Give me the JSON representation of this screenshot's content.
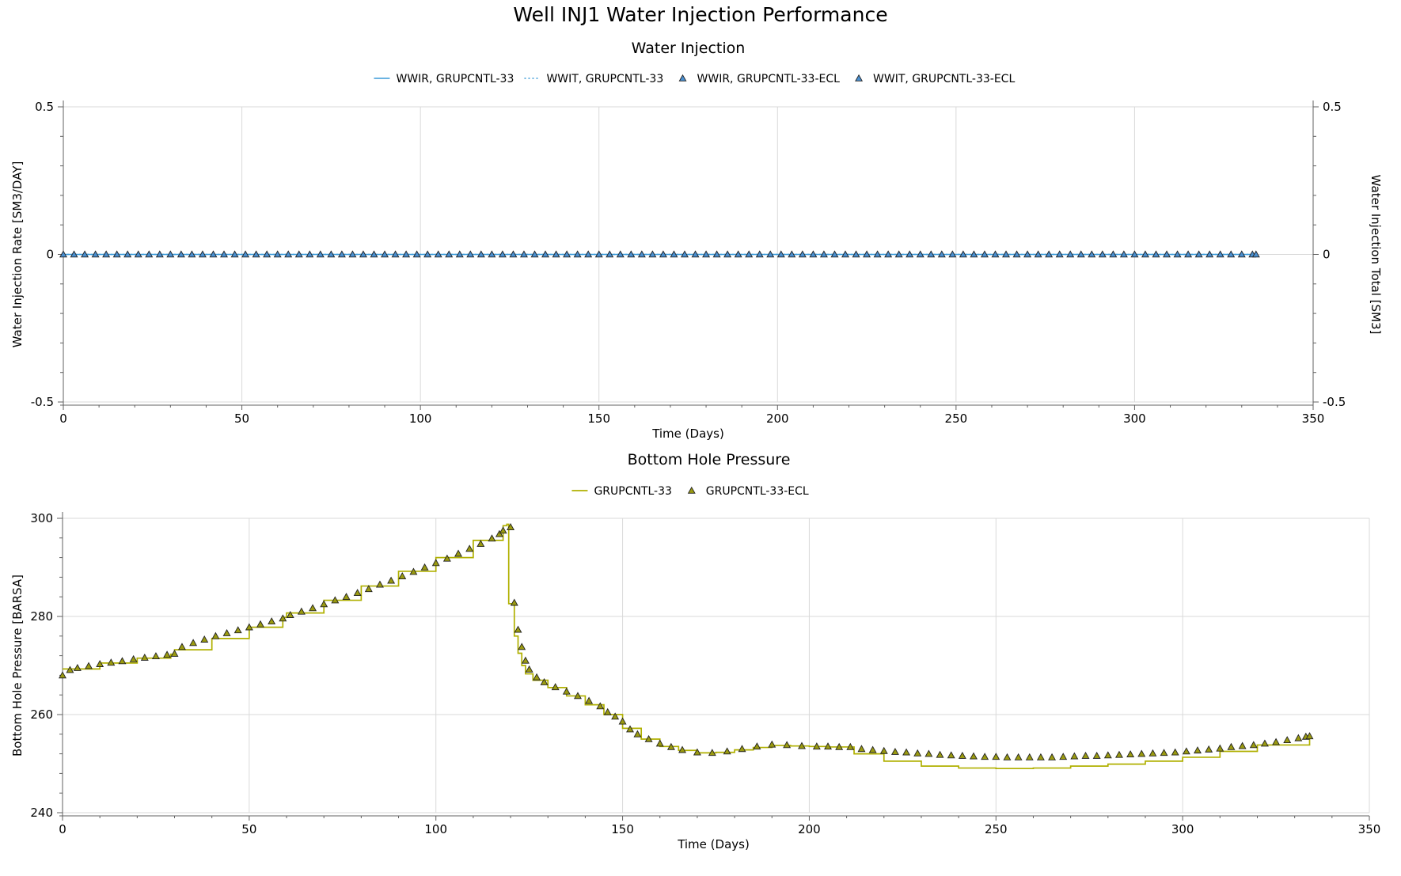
{
  "title": "Well INJ1 Water Injection Performance",
  "colors": {
    "water": "#3a9ad9",
    "water_marker": "#4a8fd0",
    "pressure": "#b0b000",
    "pressure_marker": "#9a9a10",
    "grid": "#d9d9d9",
    "axis": "#606060"
  },
  "chart_data": [
    {
      "type": "line",
      "title": "Water Injection",
      "xlabel": "Time (Days)",
      "ylabel": "Water Injection Rate [SM3/DAY]",
      "y2label": "Water Injection Total [SM3]",
      "xlim": [
        0,
        350
      ],
      "ylim": [
        -0.5,
        0.5
      ],
      "y2lim": [
        -0.5,
        0.5
      ],
      "x_ticks": [
        "0",
        "50",
        "100",
        "150",
        "200",
        "250",
        "300",
        "350"
      ],
      "y_ticks": [
        "0.5",
        "0",
        "-0.5"
      ],
      "y2_ticks": [
        "0.5",
        "0",
        "-0.5"
      ],
      "grid": true,
      "legend_position": "top-center",
      "series": [
        {
          "name": "WWIR, GRUPCNTL-33",
          "style": "solid-line",
          "axis": "left",
          "x_range": [
            0,
            334
          ],
          "value": 0
        },
        {
          "name": "WWIT, GRUPCNTL-33",
          "style": "dotted-line",
          "axis": "right",
          "x_range": [
            0,
            334
          ],
          "value": 0
        },
        {
          "name": "WWIR, GRUPCNTL-33-ECL",
          "style": "triangle-marker",
          "axis": "left",
          "x_step": 3,
          "x_range": [
            0,
            334
          ],
          "value": 0
        },
        {
          "name": "WWIT, GRUPCNTL-33-ECL",
          "style": "triangle-marker",
          "axis": "right",
          "x_step": 3,
          "x_range": [
            0,
            334
          ],
          "value": 0
        }
      ]
    },
    {
      "type": "line",
      "title": "Bottom Hole Pressure",
      "xlabel": "Time (Days)",
      "ylabel": "Bottom Hole Pressure [BARSA]",
      "xlim": [
        0,
        350
      ],
      "ylim": [
        240,
        300
      ],
      "x_ticks": [
        "0",
        "50",
        "100",
        "150",
        "200",
        "250",
        "300",
        "350"
      ],
      "y_ticks": [
        "300",
        "280",
        "260",
        "240"
      ],
      "grid": true,
      "legend_position": "top-center",
      "series": [
        {
          "name": "GRUPCNTL-33",
          "style": "step-line",
          "points": [
            [
              0,
              269.3
            ],
            [
              10,
              270.5
            ],
            [
              20,
              271.5
            ],
            [
              29,
              272.3
            ],
            [
              30,
              273.2
            ],
            [
              40,
              275.5
            ],
            [
              50,
              277.8
            ],
            [
              59,
              279.8
            ],
            [
              60,
              280.7
            ],
            [
              70,
              283.3
            ],
            [
              80,
              286.2
            ],
            [
              90,
              289.2
            ],
            [
              100,
              292.0
            ],
            [
              110,
              295.5
            ],
            [
              118,
              298.5
            ],
            [
              119,
              298.8
            ],
            [
              119.5,
              282.6
            ],
            [
              121,
              276.0
            ],
            [
              122,
              272.5
            ],
            [
              123,
              270.0
            ],
            [
              124,
              268.3
            ],
            [
              126,
              267.0
            ],
            [
              130,
              265.5
            ],
            [
              135,
              263.8
            ],
            [
              140,
              262.0
            ],
            [
              145,
              260.0
            ],
            [
              150,
              257.2
            ],
            [
              155,
              255.0
            ],
            [
              160,
              253.5
            ],
            [
              165,
              252.7
            ],
            [
              170,
              252.2
            ],
            [
              175,
              252.3
            ],
            [
              180,
              252.8
            ],
            [
              185,
              253.3
            ],
            [
              190,
              253.7
            ],
            [
              195,
              253.6
            ],
            [
              200,
              253.5
            ],
            [
              205,
              253.4
            ],
            [
              211,
              253.4
            ],
            [
              212,
              252.0
            ],
            [
              220,
              250.5
            ],
            [
              230,
              249.5
            ],
            [
              240,
              249.1
            ],
            [
              250,
              249.0
            ],
            [
              260,
              249.1
            ],
            [
              270,
              249.5
            ],
            [
              280,
              249.9
            ],
            [
              290,
              250.5
            ],
            [
              300,
              251.3
            ],
            [
              310,
              252.5
            ],
            [
              320,
              253.8
            ],
            [
              334,
              255.5
            ]
          ]
        },
        {
          "name": "GRUPCNTL-33-ECL",
          "style": "triangle-marker",
          "points": [
            [
              0,
              268.0
            ],
            [
              2,
              269.1
            ],
            [
              4,
              269.5
            ],
            [
              7,
              269.9
            ],
            [
              10,
              270.3
            ],
            [
              13,
              270.6
            ],
            [
              16,
              270.9
            ],
            [
              19,
              271.3
            ],
            [
              22,
              271.6
            ],
            [
              25,
              271.9
            ],
            [
              28,
              272.2
            ],
            [
              30,
              272.4
            ],
            [
              32,
              273.8
            ],
            [
              35,
              274.6
            ],
            [
              38,
              275.3
            ],
            [
              41,
              276.0
            ],
            [
              44,
              276.6
            ],
            [
              47,
              277.2
            ],
            [
              50,
              277.8
            ],
            [
              53,
              278.4
            ],
            [
              56,
              279.0
            ],
            [
              59,
              279.6
            ],
            [
              61,
              280.3
            ],
            [
              64,
              281.0
            ],
            [
              67,
              281.7
            ],
            [
              70,
              282.5
            ],
            [
              73,
              283.3
            ],
            [
              76,
              284.0
            ],
            [
              79,
              284.8
            ],
            [
              82,
              285.6
            ],
            [
              85,
              286.5
            ],
            [
              88,
              287.3
            ],
            [
              91,
              288.2
            ],
            [
              94,
              289.1
            ],
            [
              97,
              290.0
            ],
            [
              100,
              290.9
            ],
            [
              103,
              291.8
            ],
            [
              106,
              292.8
            ],
            [
              109,
              293.8
            ],
            [
              112,
              294.8
            ],
            [
              115,
              295.9
            ],
            [
              117,
              296.8
            ],
            [
              118,
              297.5
            ],
            [
              120,
              298.2
            ],
            [
              121,
              282.8
            ],
            [
              122,
              277.3
            ],
            [
              123,
              273.8
            ],
            [
              124,
              271.0
            ],
            [
              125,
              269.2
            ],
            [
              127,
              267.6
            ],
            [
              129,
              266.6
            ],
            [
              132,
              265.6
            ],
            [
              135,
              264.7
            ],
            [
              138,
              263.8
            ],
            [
              141,
              262.8
            ],
            [
              144,
              261.7
            ],
            [
              146,
              260.5
            ],
            [
              148,
              259.6
            ],
            [
              150,
              258.6
            ],
            [
              152,
              257.0
            ],
            [
              154,
              256.0
            ],
            [
              157,
              255.0
            ],
            [
              160,
              254.1
            ],
            [
              163,
              253.4
            ],
            [
              166,
              252.8
            ],
            [
              170,
              252.3
            ],
            [
              174,
              252.2
            ],
            [
              178,
              252.5
            ],
            [
              182,
              253.0
            ],
            [
              186,
              253.5
            ],
            [
              190,
              253.9
            ],
            [
              194,
              253.8
            ],
            [
              198,
              253.6
            ],
            [
              202,
              253.5
            ],
            [
              205,
              253.5
            ],
            [
              208,
              253.4
            ],
            [
              211,
              253.4
            ],
            [
              214,
              253.0
            ],
            [
              217,
              252.8
            ],
            [
              220,
              252.6
            ],
            [
              223,
              252.4
            ],
            [
              226,
              252.3
            ],
            [
              229,
              252.1
            ],
            [
              232,
              252.0
            ],
            [
              235,
              251.8
            ],
            [
              238,
              251.7
            ],
            [
              241,
              251.6
            ],
            [
              244,
              251.5
            ],
            [
              247,
              251.4
            ],
            [
              250,
              251.4
            ],
            [
              253,
              251.3
            ],
            [
              256,
              251.3
            ],
            [
              259,
              251.3
            ],
            [
              262,
              251.3
            ],
            [
              265,
              251.3
            ],
            [
              268,
              251.4
            ],
            [
              271,
              251.5
            ],
            [
              274,
              251.6
            ],
            [
              277,
              251.6
            ],
            [
              280,
              251.7
            ],
            [
              283,
              251.8
            ],
            [
              286,
              251.9
            ],
            [
              289,
              252.0
            ],
            [
              292,
              252.1
            ],
            [
              295,
              252.2
            ],
            [
              298,
              252.3
            ],
            [
              301,
              252.5
            ],
            [
              304,
              252.7
            ],
            [
              307,
              252.9
            ],
            [
              310,
              253.1
            ],
            [
              313,
              253.4
            ],
            [
              316,
              253.6
            ],
            [
              319,
              253.8
            ],
            [
              322,
              254.1
            ],
            [
              325,
              254.4
            ],
            [
              328,
              254.8
            ],
            [
              331,
              255.2
            ],
            [
              333,
              255.5
            ],
            [
              334,
              255.6
            ]
          ]
        }
      ]
    }
  ]
}
